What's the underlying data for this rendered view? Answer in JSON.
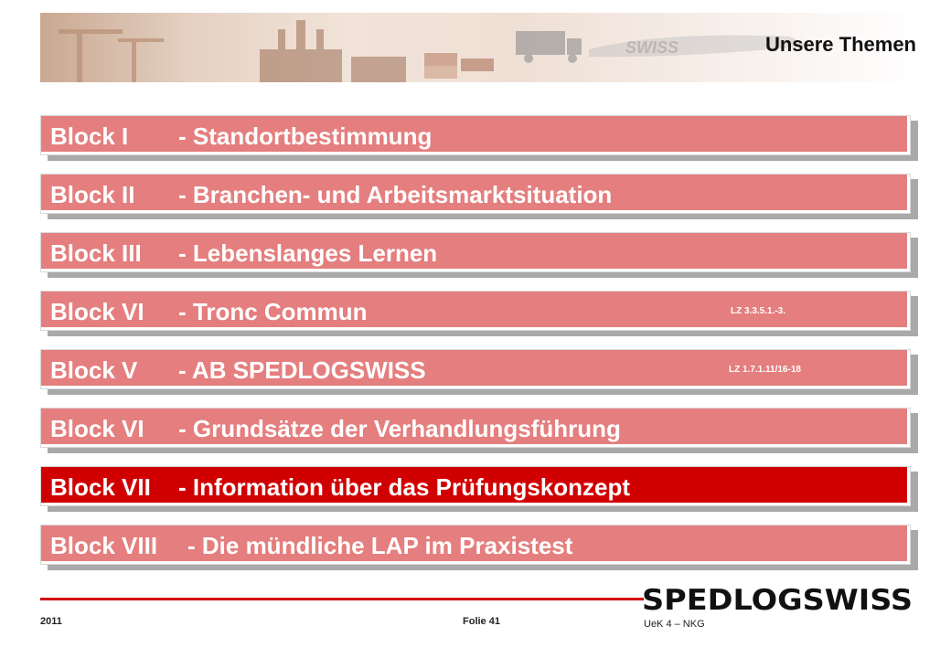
{
  "slide": {
    "title": "Unsere Themen",
    "banner_logo_text": "SWISS"
  },
  "blocks": [
    {
      "num": "Block I",
      "topic": "- Standortbestimmung",
      "lz": "",
      "active": false
    },
    {
      "num": "Block II",
      "topic": "- Branchen- und Arbeitsmarktsituation",
      "lz": "",
      "active": false
    },
    {
      "num": "Block III",
      "topic": "- Lebenslanges Lernen",
      "lz": "",
      "active": false
    },
    {
      "num": "Block VI",
      "topic": "- Tronc Commun",
      "lz": "LZ 3.3.5.1.-3.",
      "active": false
    },
    {
      "num": "Block V",
      "topic": "- AB SPEDLOGSWISS",
      "lz": "LZ 1.7.1.11/16-18",
      "active": false
    },
    {
      "num": "Block VI",
      "topic": "- Grundsätze der Verhandlungsführung",
      "lz": "",
      "active": false
    },
    {
      "num": "Block VII",
      "topic": "- Information über das Prüfungskonzept",
      "lz": "",
      "active": true
    },
    {
      "num": "Block VIII",
      "topic": "- Die mündliche LAP im Praxistest",
      "lz": "",
      "active": false
    }
  ],
  "footer": {
    "logo_text": "SPEDLOGSWISS",
    "year": "2011",
    "folie": "Folie 41",
    "course": "UeK 4 – NKG"
  },
  "colors": {
    "block": "#e57e7e",
    "block_active": "#d10000",
    "accent": "#d10000"
  }
}
